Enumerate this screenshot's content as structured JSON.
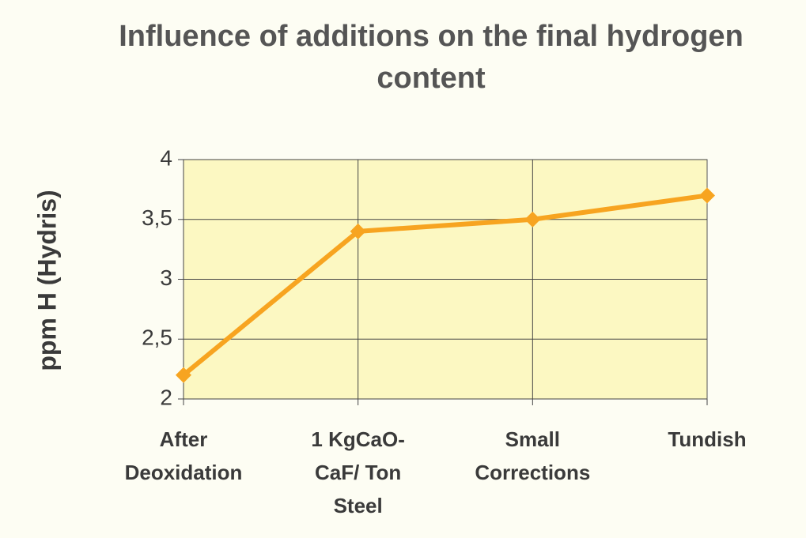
{
  "chart_data": {
    "type": "line",
    "title": "Influence of additions on the final hydrogen content",
    "y_label": "ppm H (Hydris)",
    "categories": [
      "After\nDeoxidation",
      "1 KgCaO-\nCaF/ Ton\nSteel",
      "Small\nCorrections",
      "Tundish"
    ],
    "series": [
      {
        "name": "ppm H",
        "color": "#f7a420",
        "values": [
          2.2,
          3.4,
          3.5,
          3.7
        ]
      }
    ],
    "ylim": [
      2,
      4
    ],
    "yticks": [
      2,
      {
        "value": 2.5,
        "label": "2,5"
      },
      3,
      {
        "value": 3.5,
        "label": "3,5"
      },
      4
    ],
    "grid": true
  }
}
